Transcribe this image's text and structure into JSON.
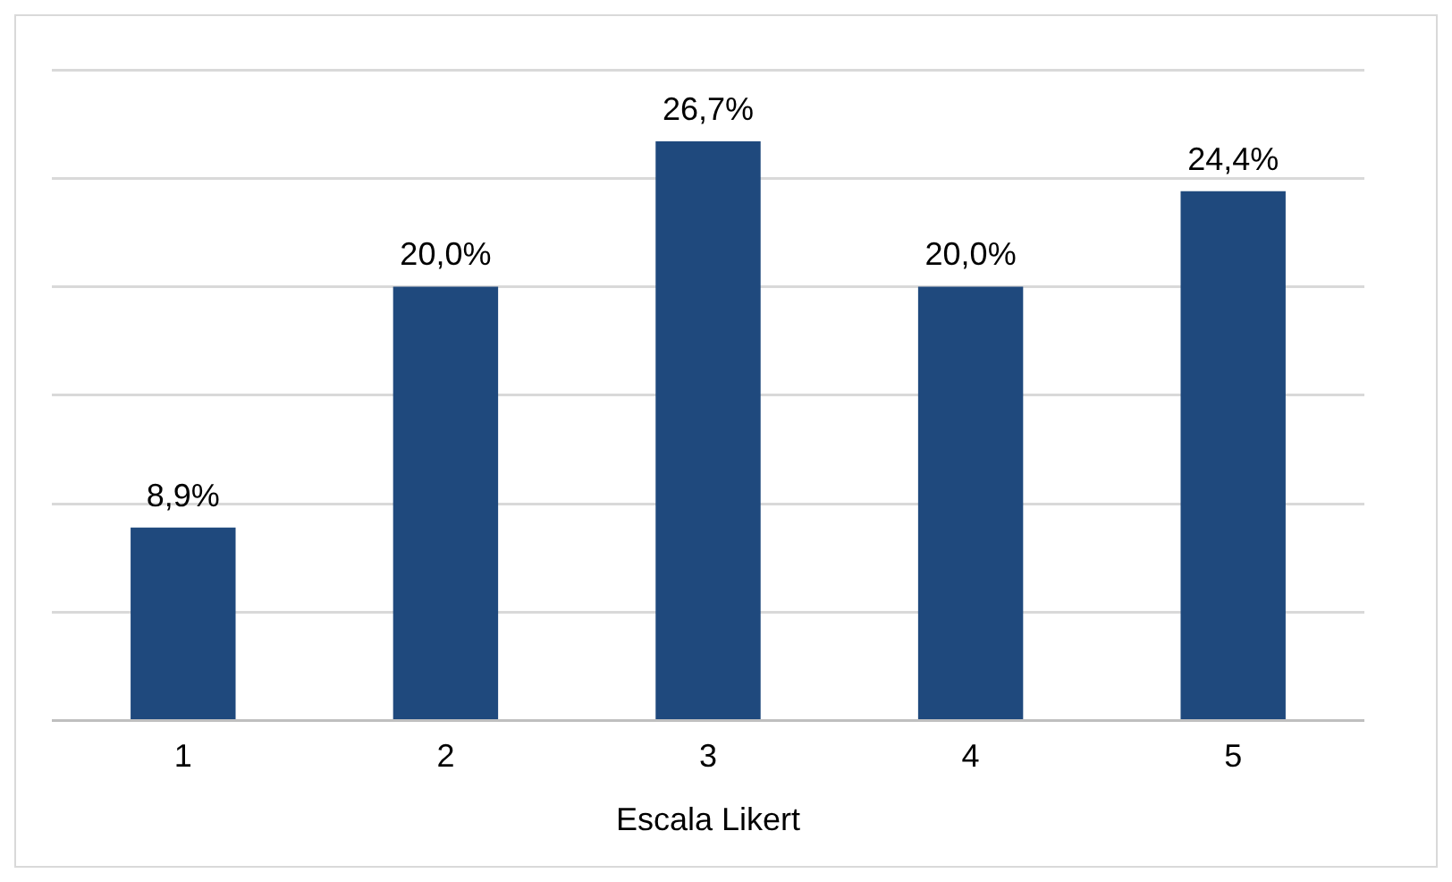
{
  "chart_data": {
    "type": "bar",
    "xlabel": "Escala Likert",
    "categories": [
      "1",
      "2",
      "3",
      "4",
      "5"
    ],
    "values": [
      8.9,
      20.0,
      26.7,
      20.0,
      24.4
    ],
    "value_labels": [
      "8,9%",
      "20,0%",
      "26,7%",
      "20,0%",
      "24,4%"
    ],
    "color": "#1f497d",
    "ylim": [
      0,
      30
    ],
    "yticks": [
      {
        "value": 0,
        "label": null
      },
      {
        "value": 5,
        "label": null
      },
      {
        "value": 10,
        "label": null
      },
      {
        "value": 15,
        "label": null
      },
      {
        "value": 20,
        "label": null
      },
      {
        "value": 25,
        "label": null
      },
      {
        "value": 30,
        "label": null
      }
    ],
    "grid": "y",
    "tick_labels": "x",
    "legend": false
  }
}
